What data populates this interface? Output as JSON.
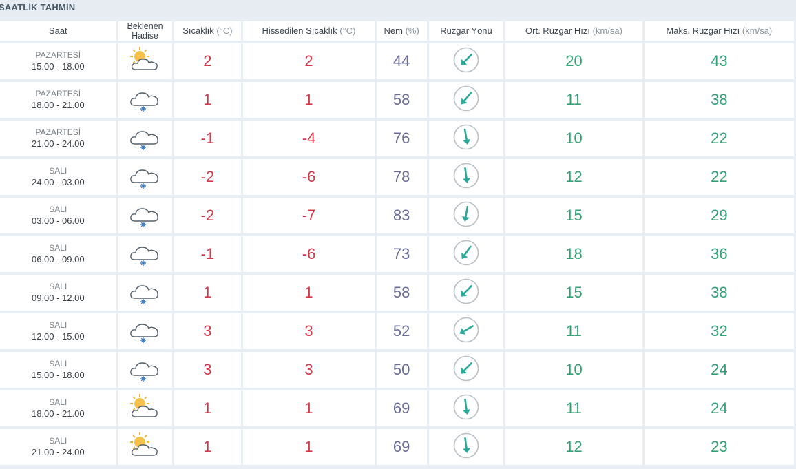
{
  "title": "SAATLİK TAHMİN",
  "headers": {
    "saat": "Saat",
    "hadise": "Beklenen Hadise",
    "sicaklik": "Sıcaklık",
    "sicaklik_unit": "(°C)",
    "hissedilen": "Hissedilen Sıcaklık",
    "hissedilen_unit": "(°C)",
    "nem": "Nem",
    "nem_unit": "(%)",
    "yon": "Rüzgar Yönü",
    "ort": "Ort. Rüzgar Hızı",
    "ort_unit": "(km/sa)",
    "maks": "Maks. Rüzgar Hızı",
    "maks_unit": "(km/sa)"
  },
  "colors": {
    "temp": "#d4384b",
    "humidity": "#6a6d96",
    "wind": "#34a276",
    "arrow": "#2aa89a"
  },
  "rows": [
    {
      "day": "PAZARTESİ",
      "range": "15.00 - 18.00",
      "icon": "partly-cloudy-icon",
      "temp": "2",
      "feel": "2",
      "hum": "44",
      "dir_deg": 225,
      "avg": "20",
      "max": "43"
    },
    {
      "day": "PAZARTESİ",
      "range": "18.00 - 21.00",
      "icon": "snow-cloud-icon",
      "temp": "1",
      "feel": "1",
      "hum": "58",
      "dir_deg": 220,
      "avg": "11",
      "max": "38"
    },
    {
      "day": "PAZARTESİ",
      "range": "21.00 - 24.00",
      "icon": "snow-cloud-icon",
      "temp": "-1",
      "feel": "-4",
      "hum": "76",
      "dir_deg": 170,
      "avg": "10",
      "max": "22"
    },
    {
      "day": "SALI",
      "range": "24.00 - 03.00",
      "icon": "snow-cloud-icon",
      "temp": "-2",
      "feel": "-6",
      "hum": "78",
      "dir_deg": 172,
      "avg": "12",
      "max": "22"
    },
    {
      "day": "SALI",
      "range": "03.00 - 06.00",
      "icon": "snow-cloud-icon",
      "temp": "-2",
      "feel": "-7",
      "hum": "83",
      "dir_deg": 190,
      "avg": "15",
      "max": "29"
    },
    {
      "day": "SALI",
      "range": "06.00 - 09.00",
      "icon": "snow-cloud-icon",
      "temp": "-1",
      "feel": "-6",
      "hum": "73",
      "dir_deg": 215,
      "avg": "18",
      "max": "36"
    },
    {
      "day": "SALI",
      "range": "09.00 - 12.00",
      "icon": "snow-cloud-icon",
      "temp": "1",
      "feel": "1",
      "hum": "58",
      "dir_deg": 225,
      "avg": "15",
      "max": "38"
    },
    {
      "day": "SALI",
      "range": "12.00 - 15.00",
      "icon": "snow-cloud-icon",
      "temp": "3",
      "feel": "3",
      "hum": "52",
      "dir_deg": 240,
      "avg": "11",
      "max": "32"
    },
    {
      "day": "SALI",
      "range": "15.00 - 18.00",
      "icon": "snow-cloud-icon",
      "temp": "3",
      "feel": "3",
      "hum": "50",
      "dir_deg": 225,
      "avg": "10",
      "max": "24"
    },
    {
      "day": "SALI",
      "range": "18.00 - 21.00",
      "icon": "partly-cloudy-icon",
      "temp": "1",
      "feel": "1",
      "hum": "69",
      "dir_deg": 172,
      "avg": "11",
      "max": "24"
    },
    {
      "day": "SALI",
      "range": "21.00 - 24.00",
      "icon": "partly-cloudy-icon",
      "temp": "1",
      "feel": "1",
      "hum": "69",
      "dir_deg": 172,
      "avg": "12",
      "max": "23"
    }
  ]
}
